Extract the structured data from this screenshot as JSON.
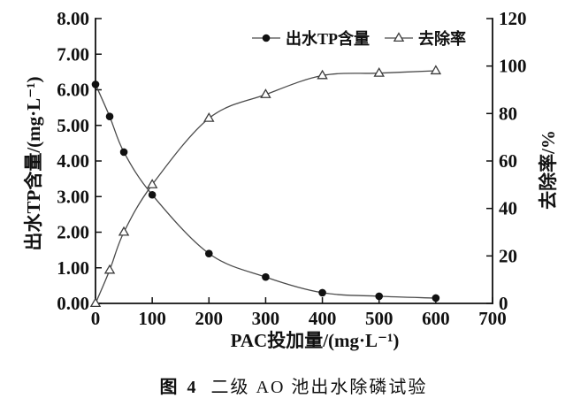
{
  "figure": {
    "caption": {
      "figure_label": "图 4",
      "title": "二级 AO 池出水除磷试验"
    }
  },
  "chart_data": {
    "type": "line",
    "title": "",
    "xlabel": "PAC投加量/(mg·L⁻¹)",
    "ylabel_left": "出水TP含量/(mg·L⁻¹)",
    "ylabel_right": "去除率/%",
    "xlim": [
      0,
      700
    ],
    "xticks": [
      0,
      100,
      200,
      300,
      400,
      500,
      600,
      700
    ],
    "ylim_left": [
      0,
      8
    ],
    "yticks_left": [
      "0.00",
      "1.00",
      "2.00",
      "3.00",
      "4.00",
      "5.00",
      "6.00",
      "7.00",
      "8.00"
    ],
    "ylim_right": [
      0,
      120
    ],
    "yticks_right": [
      0,
      20,
      40,
      60,
      80,
      100,
      120
    ],
    "grid": false,
    "x": [
      0,
      25,
      50,
      100,
      200,
      300,
      400,
      500,
      600
    ],
    "series": [
      {
        "name": "出水TP含量",
        "axis": "left",
        "marker": "filled-circle",
        "values": [
          6.15,
          5.25,
          4.25,
          3.05,
          1.4,
          0.74,
          0.3,
          0.2,
          0.15
        ]
      },
      {
        "name": "去除率",
        "axis": "right",
        "marker": "open-triangle",
        "values": [
          0,
          14,
          30,
          50,
          78,
          88,
          96,
          97,
          98
        ]
      }
    ],
    "legend": {
      "position": "top-inside",
      "entries": [
        "出水TP含量",
        "去除率"
      ]
    },
    "colors": {
      "line": "#4a4a4a",
      "marker": "#111111",
      "text": "#111111",
      "background": "#ffffff"
    }
  }
}
